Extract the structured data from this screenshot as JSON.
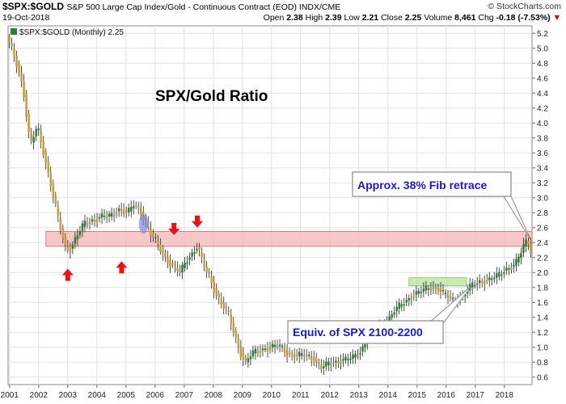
{
  "header": {
    "symbol": "$SPX:$GOLD",
    "description": "S&P 500 Large Cap Index/Gold - Continuous Contract (EOD) INDX/CME",
    "date": "19-Oct-2018",
    "brand": "© StockCharts.com",
    "open_label": "Open",
    "open": "2.38",
    "high_label": "High",
    "high": "2.39",
    "low_label": "Low",
    "low": "2.21",
    "close_label": "Close",
    "close": "2.25",
    "volume_label": "Volume",
    "volume": "8,461",
    "chg_label": "Chg",
    "chg": "-0.18 (-7.53%)"
  },
  "chart_data": {
    "type": "candlestick",
    "legend": "$SPX:$GOLD (Monthly) 2.25",
    "title": "SPX/Gold Ratio",
    "x_ticks": [
      "2001",
      "2002",
      "2003",
      "2004",
      "2005",
      "2006",
      "2007",
      "2008",
      "2009",
      "2010",
      "2011",
      "2012",
      "2013",
      "2014",
      "2015",
      "2016",
      "2017",
      "2018"
    ],
    "y_ticks": [
      0.6,
      0.8,
      1.0,
      1.2,
      1.4,
      1.6,
      1.8,
      2.0,
      2.2,
      2.4,
      2.6,
      2.8,
      3.0,
      3.2,
      3.4,
      3.6,
      3.8,
      4.0,
      4.2,
      4.4,
      4.6,
      4.8,
      5.0,
      5.2
    ],
    "ylim": [
      0.5,
      5.3
    ],
    "xlim": [
      2000.95,
      2018.95
    ],
    "axis_side": "right",
    "path": [
      [
        2000.95,
        5.15
      ],
      [
        2001.2,
        4.9
      ],
      [
        2001.5,
        4.5
      ],
      [
        2001.75,
        3.7
      ],
      [
        2002.0,
        3.95
      ],
      [
        2002.25,
        3.55
      ],
      [
        2002.5,
        3.1
      ],
      [
        2002.75,
        2.65
      ],
      [
        2002.95,
        2.35
      ],
      [
        2003.1,
        2.3
      ],
      [
        2003.3,
        2.45
      ],
      [
        2003.6,
        2.65
      ],
      [
        2003.9,
        2.7
      ],
      [
        2004.2,
        2.75
      ],
      [
        2004.5,
        2.75
      ],
      [
        2004.8,
        2.85
      ],
      [
        2005.1,
        2.8
      ],
      [
        2005.3,
        2.9
      ],
      [
        2005.5,
        2.85
      ],
      [
        2005.7,
        2.7
      ],
      [
        2005.9,
        2.5
      ],
      [
        2006.1,
        2.4
      ],
      [
        2006.3,
        2.25
      ],
      [
        2006.6,
        2.1
      ],
      [
        2006.9,
        2.0
      ],
      [
        2007.1,
        2.15
      ],
      [
        2007.3,
        2.25
      ],
      [
        2007.5,
        2.35
      ],
      [
        2007.7,
        2.1
      ],
      [
        2007.9,
        1.95
      ],
      [
        2008.1,
        1.75
      ],
      [
        2008.3,
        1.6
      ],
      [
        2008.55,
        1.45
      ],
      [
        2008.75,
        1.2
      ],
      [
        2008.95,
        0.95
      ],
      [
        2009.15,
        0.8
      ],
      [
        2009.4,
        0.92
      ],
      [
        2009.7,
        0.97
      ],
      [
        2010.0,
        1.0
      ],
      [
        2010.3,
        1.02
      ],
      [
        2010.6,
        0.92
      ],
      [
        2010.9,
        0.88
      ],
      [
        2011.2,
        0.9
      ],
      [
        2011.5,
        0.85
      ],
      [
        2011.75,
        0.72
      ],
      [
        2012.0,
        0.78
      ],
      [
        2012.4,
        0.82
      ],
      [
        2012.8,
        0.85
      ],
      [
        2013.1,
        0.95
      ],
      [
        2013.4,
        1.15
      ],
      [
        2013.7,
        1.25
      ],
      [
        2014.0,
        1.35
      ],
      [
        2014.3,
        1.5
      ],
      [
        2014.6,
        1.6
      ],
      [
        2014.9,
        1.7
      ],
      [
        2015.2,
        1.75
      ],
      [
        2015.5,
        1.8
      ],
      [
        2015.8,
        1.78
      ],
      [
        2016.0,
        1.7
      ],
      [
        2016.3,
        1.62
      ],
      [
        2016.6,
        1.68
      ],
      [
        2016.9,
        1.82
      ],
      [
        2017.2,
        1.88
      ],
      [
        2017.5,
        1.9
      ],
      [
        2017.8,
        1.95
      ],
      [
        2018.1,
        2.05
      ],
      [
        2018.4,
        2.1
      ],
      [
        2018.6,
        2.25
      ],
      [
        2018.75,
        2.4
      ],
      [
        2018.85,
        2.45
      ],
      [
        2018.95,
        2.25
      ]
    ],
    "band_red": {
      "y0": 2.35,
      "y1": 2.55,
      "x0": 2002.25,
      "x1": 2018.95
    },
    "band_green": {
      "y0": 1.82,
      "y1": 1.93,
      "x0": 2014.72,
      "x1": 2016.7
    },
    "callout_fib": "Approx. 38% Fib retrace",
    "callout_spx": "Equiv. of SPX 2100-2200",
    "arrows": [
      {
        "dir": "up",
        "x": 2003.0,
        "y": 2.05
      },
      {
        "dir": "up",
        "x": 2004.85,
        "y": 2.15
      },
      {
        "dir": "down",
        "x": 2006.65,
        "y": 2.5
      },
      {
        "dir": "down",
        "x": 2007.45,
        "y": 2.6
      }
    ],
    "ellipse": {
      "x": 2005.6,
      "y": 2.65
    },
    "colors": {
      "up": "#2e7d32",
      "down": "#c89b2e",
      "band_red": "#f4b6b6",
      "band_green": "#bfe8a6",
      "callout_text": "#1a1acc",
      "arrow": "#ee1111"
    }
  }
}
